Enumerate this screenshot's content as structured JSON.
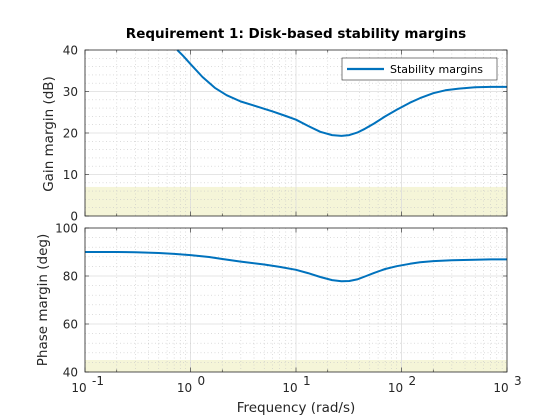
{
  "chart_data": [
    {
      "type": "line",
      "title": "Requirement 1: Disk-based stability margins",
      "xlabel": "",
      "ylabel": "Gain margin (dB)",
      "xscale": "log",
      "xlim": [
        0.1,
        1000
      ],
      "ylim": [
        0,
        40
      ],
      "yticks": [
        0,
        10,
        20,
        30,
        40
      ],
      "grid": true,
      "legend": {
        "position": "top-right",
        "entries": [
          "Stability margins"
        ]
      },
      "bound_region": {
        "y_from": 0,
        "y_to": 7,
        "color": "#f5f5d8"
      },
      "series": [
        {
          "name": "Stability margins",
          "color": "#0072bd",
          "x": [
            0.75,
            0.85,
            1.0,
            1.3,
            1.7,
            2.2,
            3.0,
            4.0,
            6.0,
            8.0,
            10.0,
            13.0,
            17.0,
            22.0,
            27.0,
            32.0,
            38.0,
            45.0,
            55.0,
            70.0,
            90.0,
            120.0,
            150.0,
            200.0,
            260.0,
            350.0,
            500.0,
            700.0,
            1000.0
          ],
          "y": [
            40.0,
            38.6,
            36.6,
            33.5,
            30.9,
            29.1,
            27.6,
            26.6,
            25.2,
            24.1,
            23.2,
            21.7,
            20.3,
            19.5,
            19.3,
            19.5,
            20.1,
            21.0,
            22.3,
            24.0,
            25.6,
            27.3,
            28.4,
            29.6,
            30.3,
            30.7,
            31.0,
            31.1,
            31.1
          ]
        }
      ]
    },
    {
      "type": "line",
      "title": "",
      "xlabel": "Frequency (rad/s)",
      "ylabel": "Phase margin (deg)",
      "xscale": "log",
      "xlim": [
        0.1,
        1000
      ],
      "ylim": [
        40,
        100
      ],
      "yticks": [
        40,
        60,
        80,
        100
      ],
      "xticks": [
        0.1,
        1,
        10,
        100,
        1000
      ],
      "xtick_labels": [
        {
          "base": "10",
          "exp": "-1"
        },
        {
          "base": "10",
          "exp": "0"
        },
        {
          "base": "10",
          "exp": "1"
        },
        {
          "base": "10",
          "exp": "2"
        },
        {
          "base": "10",
          "exp": "3"
        }
      ],
      "grid": true,
      "bound_region": {
        "y_from": 40,
        "y_to": 45,
        "color": "#f5f5d8"
      },
      "series": [
        {
          "name": "",
          "color": "#0072bd",
          "x": [
            0.1,
            0.2,
            0.3,
            0.5,
            0.7,
            1.0,
            1.5,
            2.0,
            3.0,
            5.0,
            7.0,
            10.0,
            13.0,
            17.0,
            22.0,
            27.0,
            32.0,
            38.0,
            45.0,
            55.0,
            70.0,
            90.0,
            120.0,
            150.0,
            200.0,
            300.0,
            500.0,
            700.0,
            1000.0
          ],
          "y": [
            90.0,
            90.0,
            89.9,
            89.6,
            89.2,
            88.7,
            87.9,
            87.1,
            86.0,
            84.8,
            83.8,
            82.6,
            81.2,
            79.6,
            78.3,
            77.8,
            77.9,
            78.6,
            79.8,
            81.3,
            82.9,
            84.1,
            85.1,
            85.7,
            86.2,
            86.6,
            86.8,
            86.9,
            86.9
          ]
        }
      ]
    }
  ]
}
